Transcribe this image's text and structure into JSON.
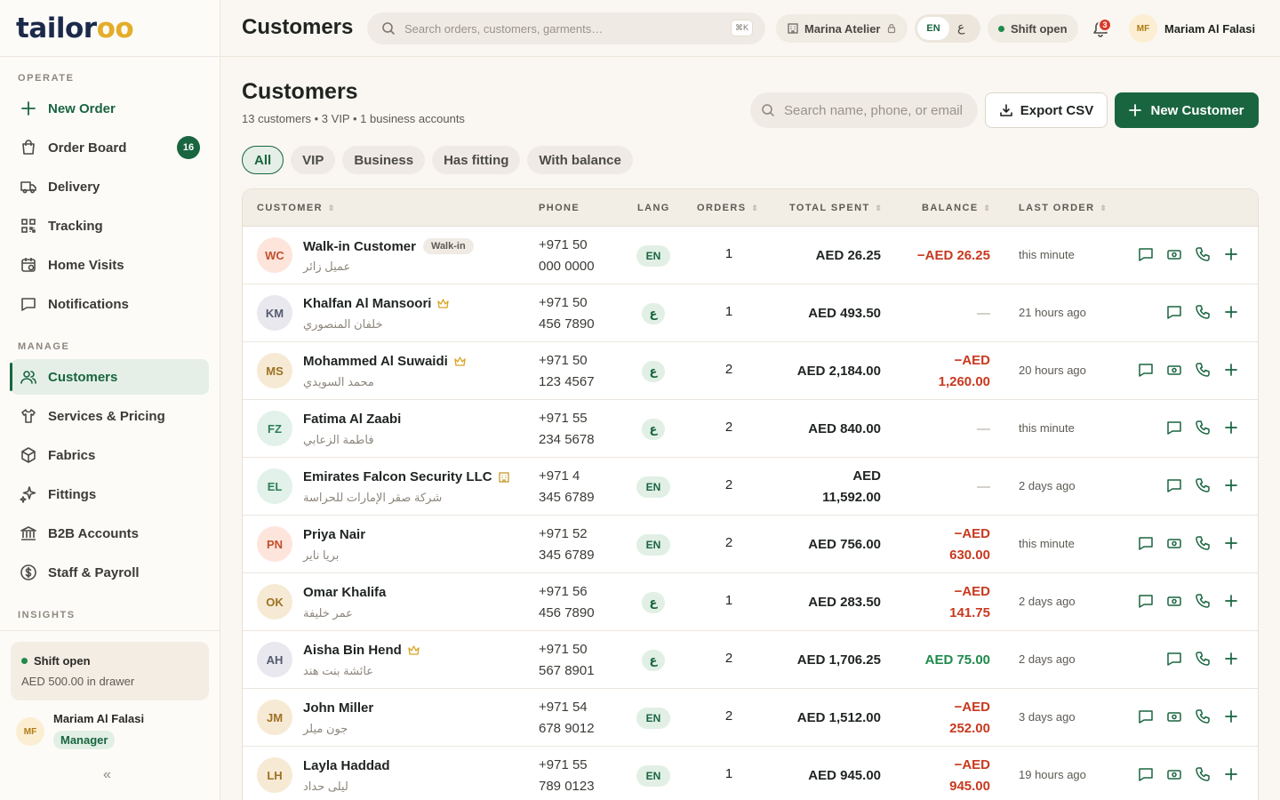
{
  "brand": {
    "prefix": "tailor",
    "suffix": "oo"
  },
  "colors": {
    "accent": "#19653f",
    "negative": "#c8391f",
    "positive": "#1f8a4c",
    "brand_gold": "#e4ad29"
  },
  "sidebar": {
    "section_operate": "OPERATE",
    "section_manage": "MANAGE",
    "section_insights": "INSIGHTS",
    "items": [
      {
        "label": "New Order",
        "icon": "plus-icon"
      },
      {
        "label": "Order Board",
        "icon": "shopping-bag-icon",
        "badge": "16"
      },
      {
        "label": "Delivery",
        "icon": "truck-icon"
      },
      {
        "label": "Tracking",
        "icon": "qr-code-icon"
      },
      {
        "label": "Home Visits",
        "icon": "calendar-icon"
      },
      {
        "label": "Notifications",
        "icon": "message-square-icon"
      },
      {
        "label": "Customers",
        "icon": "users-icon"
      },
      {
        "label": "Services & Pricing",
        "icon": "shirt-icon"
      },
      {
        "label": "Fabrics",
        "icon": "package-icon"
      },
      {
        "label": "Fittings",
        "icon": "sparkle-icon"
      },
      {
        "label": "B2B Accounts",
        "icon": "landmark-icon"
      },
      {
        "label": "Staff & Payroll",
        "icon": "dollar-circle-icon"
      }
    ],
    "shift": {
      "status": "Shift open",
      "drawer": "AED 500.00 in drawer"
    },
    "user": {
      "initials": "MF",
      "name": "Mariam Al Falasi",
      "role": "Manager"
    },
    "collapse": "«"
  },
  "topbar": {
    "title": "Customers",
    "search_placeholder": "Search orders, customers, garments…",
    "shortcut": "⌘K",
    "branch": "Marina Atelier",
    "lang_en": "EN",
    "lang_ar": "ع",
    "shift": "Shift open",
    "notifications": "3",
    "user_initials": "MF",
    "user_name": "Mariam Al Falasi"
  },
  "page": {
    "title": "Customers",
    "subtitle": "13 customers • 3 VIP • 1 business accounts",
    "search_placeholder": "Search name, phone, or email",
    "export_label": "Export CSV",
    "new_label": "New Customer"
  },
  "filters": [
    "All",
    "VIP",
    "Business",
    "Has fitting",
    "With balance"
  ],
  "columns": {
    "customer": "CUSTOMER",
    "phone": "PHONE",
    "lang": "LANG",
    "orders": "ORDERS",
    "total": "TOTAL SPENT",
    "balance": "BALANCE",
    "last": "LAST ORDER"
  },
  "rows": [
    {
      "initials": "WC",
      "name": "Walk-in Customer",
      "tag": "Walk-in",
      "arabic": "عميل زائر",
      "phone1": "+971 50",
      "phone2": "000 0000",
      "lang": "EN",
      "orders": "1",
      "total1": "AED 26.25",
      "total2": "",
      "balance1": "−AED 26.25",
      "balance2": "",
      "balance_type": "neg",
      "last": "this minute",
      "wallet": true,
      "av_bg": "#fde5dc",
      "av_fg": "#c2502c"
    },
    {
      "initials": "KM",
      "name": "Khalfan Al Mansoori",
      "vip": true,
      "arabic": "خلفان المنصوري",
      "phone1": "+971 50",
      "phone2": "456 7890",
      "lang": "ع",
      "orders": "1",
      "total1": "AED 493.50",
      "total2": "",
      "balance1": "—",
      "balance2": "",
      "balance_type": "none",
      "last": "21 hours ago",
      "wallet": false,
      "av_bg": "#e8e8ee",
      "av_fg": "#555a6e"
    },
    {
      "initials": "MS",
      "name": "Mohammed Al Suwaidi",
      "vip": true,
      "arabic": "محمد السويدي",
      "phone1": "+971 50",
      "phone2": "123 4567",
      "lang": "ع",
      "orders": "2",
      "total1": "AED 2,184.00",
      "total2": "",
      "balance1": "−AED",
      "balance2": "1,260.00",
      "balance_type": "neg",
      "last": "20 hours ago",
      "wallet": true,
      "av_bg": "#f6ead4",
      "av_fg": "#9d7124"
    },
    {
      "initials": "FZ",
      "name": "Fatima Al Zaabi",
      "arabic": "فاطمة الزعابي",
      "phone1": "+971 55",
      "phone2": "234 5678",
      "lang": "ع",
      "orders": "2",
      "total1": "AED 840.00",
      "total2": "",
      "balance1": "—",
      "balance2": "",
      "balance_type": "none",
      "last": "this minute",
      "wallet": false,
      "av_bg": "#e2f1ea",
      "av_fg": "#2d7e57"
    },
    {
      "initials": "EL",
      "name": "Emirates Falcon Security LLC",
      "business": true,
      "arabic": "شركة صقر الإمارات للحراسة",
      "phone1": "+971 4",
      "phone2": "345 6789",
      "lang": "EN",
      "orders": "2",
      "total1": "AED",
      "total2": "11,592.00",
      "balance1": "—",
      "balance2": "",
      "balance_type": "none",
      "last": "2 days ago",
      "wallet": false,
      "av_bg": "#e2f1ea",
      "av_fg": "#2d7e57"
    },
    {
      "initials": "PN",
      "name": "Priya Nair",
      "arabic": "بريا ناير",
      "phone1": "+971 52",
      "phone2": "345 6789",
      "lang": "EN",
      "orders": "2",
      "total1": "AED 756.00",
      "total2": "",
      "balance1": "−AED",
      "balance2": "630.00",
      "balance_type": "neg",
      "last": "this minute",
      "wallet": true,
      "av_bg": "#fde5dc",
      "av_fg": "#c2502c"
    },
    {
      "initials": "OK",
      "name": "Omar Khalifa",
      "arabic": "عمر خليفة",
      "phone1": "+971 56",
      "phone2": "456 7890",
      "lang": "ع",
      "orders": "1",
      "total1": "AED 283.50",
      "total2": "",
      "balance1": "−AED",
      "balance2": "141.75",
      "balance_type": "neg",
      "last": "2 days ago",
      "wallet": true,
      "av_bg": "#f6ead4",
      "av_fg": "#9d7124"
    },
    {
      "initials": "AH",
      "name": "Aisha Bin Hend",
      "vip": true,
      "arabic": "عائشة بنت هند",
      "phone1": "+971 50",
      "phone2": "567 8901",
      "lang": "ع",
      "orders": "2",
      "total1": "AED 1,706.25",
      "total2": "",
      "balance1": "AED 75.00",
      "balance2": "",
      "balance_type": "pos",
      "last": "2 days ago",
      "wallet": false,
      "av_bg": "#e8e8ee",
      "av_fg": "#555a6e"
    },
    {
      "initials": "JM",
      "name": "John Miller",
      "arabic": "جون ميلر",
      "phone1": "+971 54",
      "phone2": "678 9012",
      "lang": "EN",
      "orders": "2",
      "total1": "AED 1,512.00",
      "total2": "",
      "balance1": "−AED",
      "balance2": "252.00",
      "balance_type": "neg",
      "last": "3 days ago",
      "wallet": true,
      "av_bg": "#f6ead4",
      "av_fg": "#9d7124"
    },
    {
      "initials": "LH",
      "name": "Layla Haddad",
      "arabic": "ليلى حداد",
      "phone1": "+971 55",
      "phone2": "789 0123",
      "lang": "EN",
      "orders": "1",
      "total1": "AED 945.00",
      "total2": "",
      "balance1": "−AED",
      "balance2": "945.00",
      "balance_type": "neg",
      "last": "19 hours ago",
      "wallet": true,
      "av_bg": "#f6ead4",
      "av_fg": "#9d7124"
    }
  ]
}
